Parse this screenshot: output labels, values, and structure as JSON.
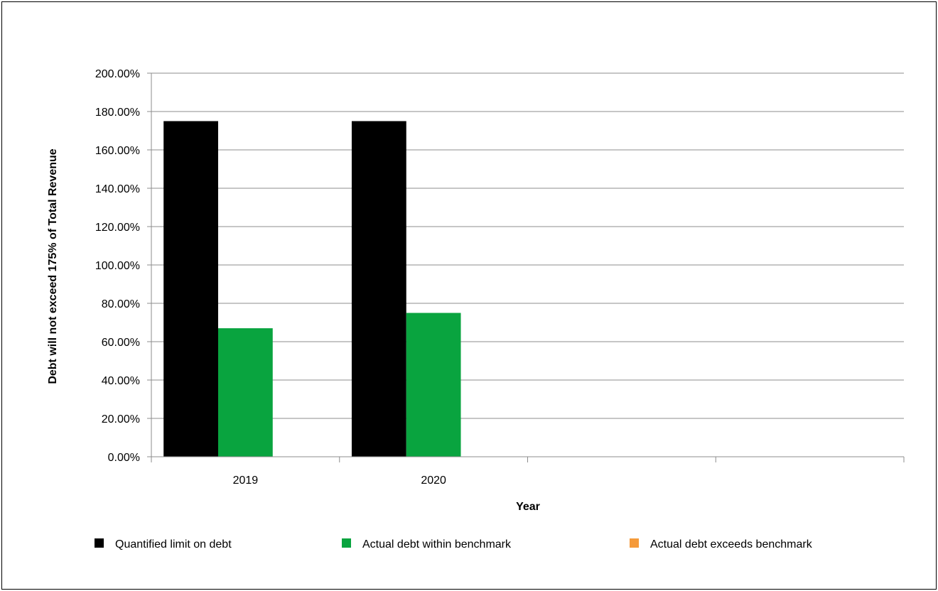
{
  "chart_data": {
    "type": "bar",
    "categories": [
      "2019",
      "2020",
      "",
      ""
    ],
    "series": [
      {
        "name": "Quantified limit on debt",
        "color": "#000000",
        "values": [
          175,
          175,
          null,
          null
        ]
      },
      {
        "name": "Actual debt within benchmark",
        "color": "#09A43F",
        "values": [
          67,
          75,
          null,
          null
        ]
      },
      {
        "name": "Actual debt exceeds benchmark",
        "color": "#F59A3A",
        "values": [
          null,
          null,
          null,
          null
        ]
      }
    ],
    "xlabel": "Year",
    "ylabel": "Debt will not exceed 175% of Total Revenue",
    "ylim": [
      0,
      200
    ],
    "ytick_step": 20,
    "ytick_labels": [
      "0.00%",
      "20.00%",
      "40.00%",
      "60.00%",
      "80.00%",
      "100.00%",
      "120.00%",
      "140.00%",
      "160.00%",
      "180.00%",
      "200.00%"
    ],
    "grid": true,
    "legend_position": "bottom"
  }
}
